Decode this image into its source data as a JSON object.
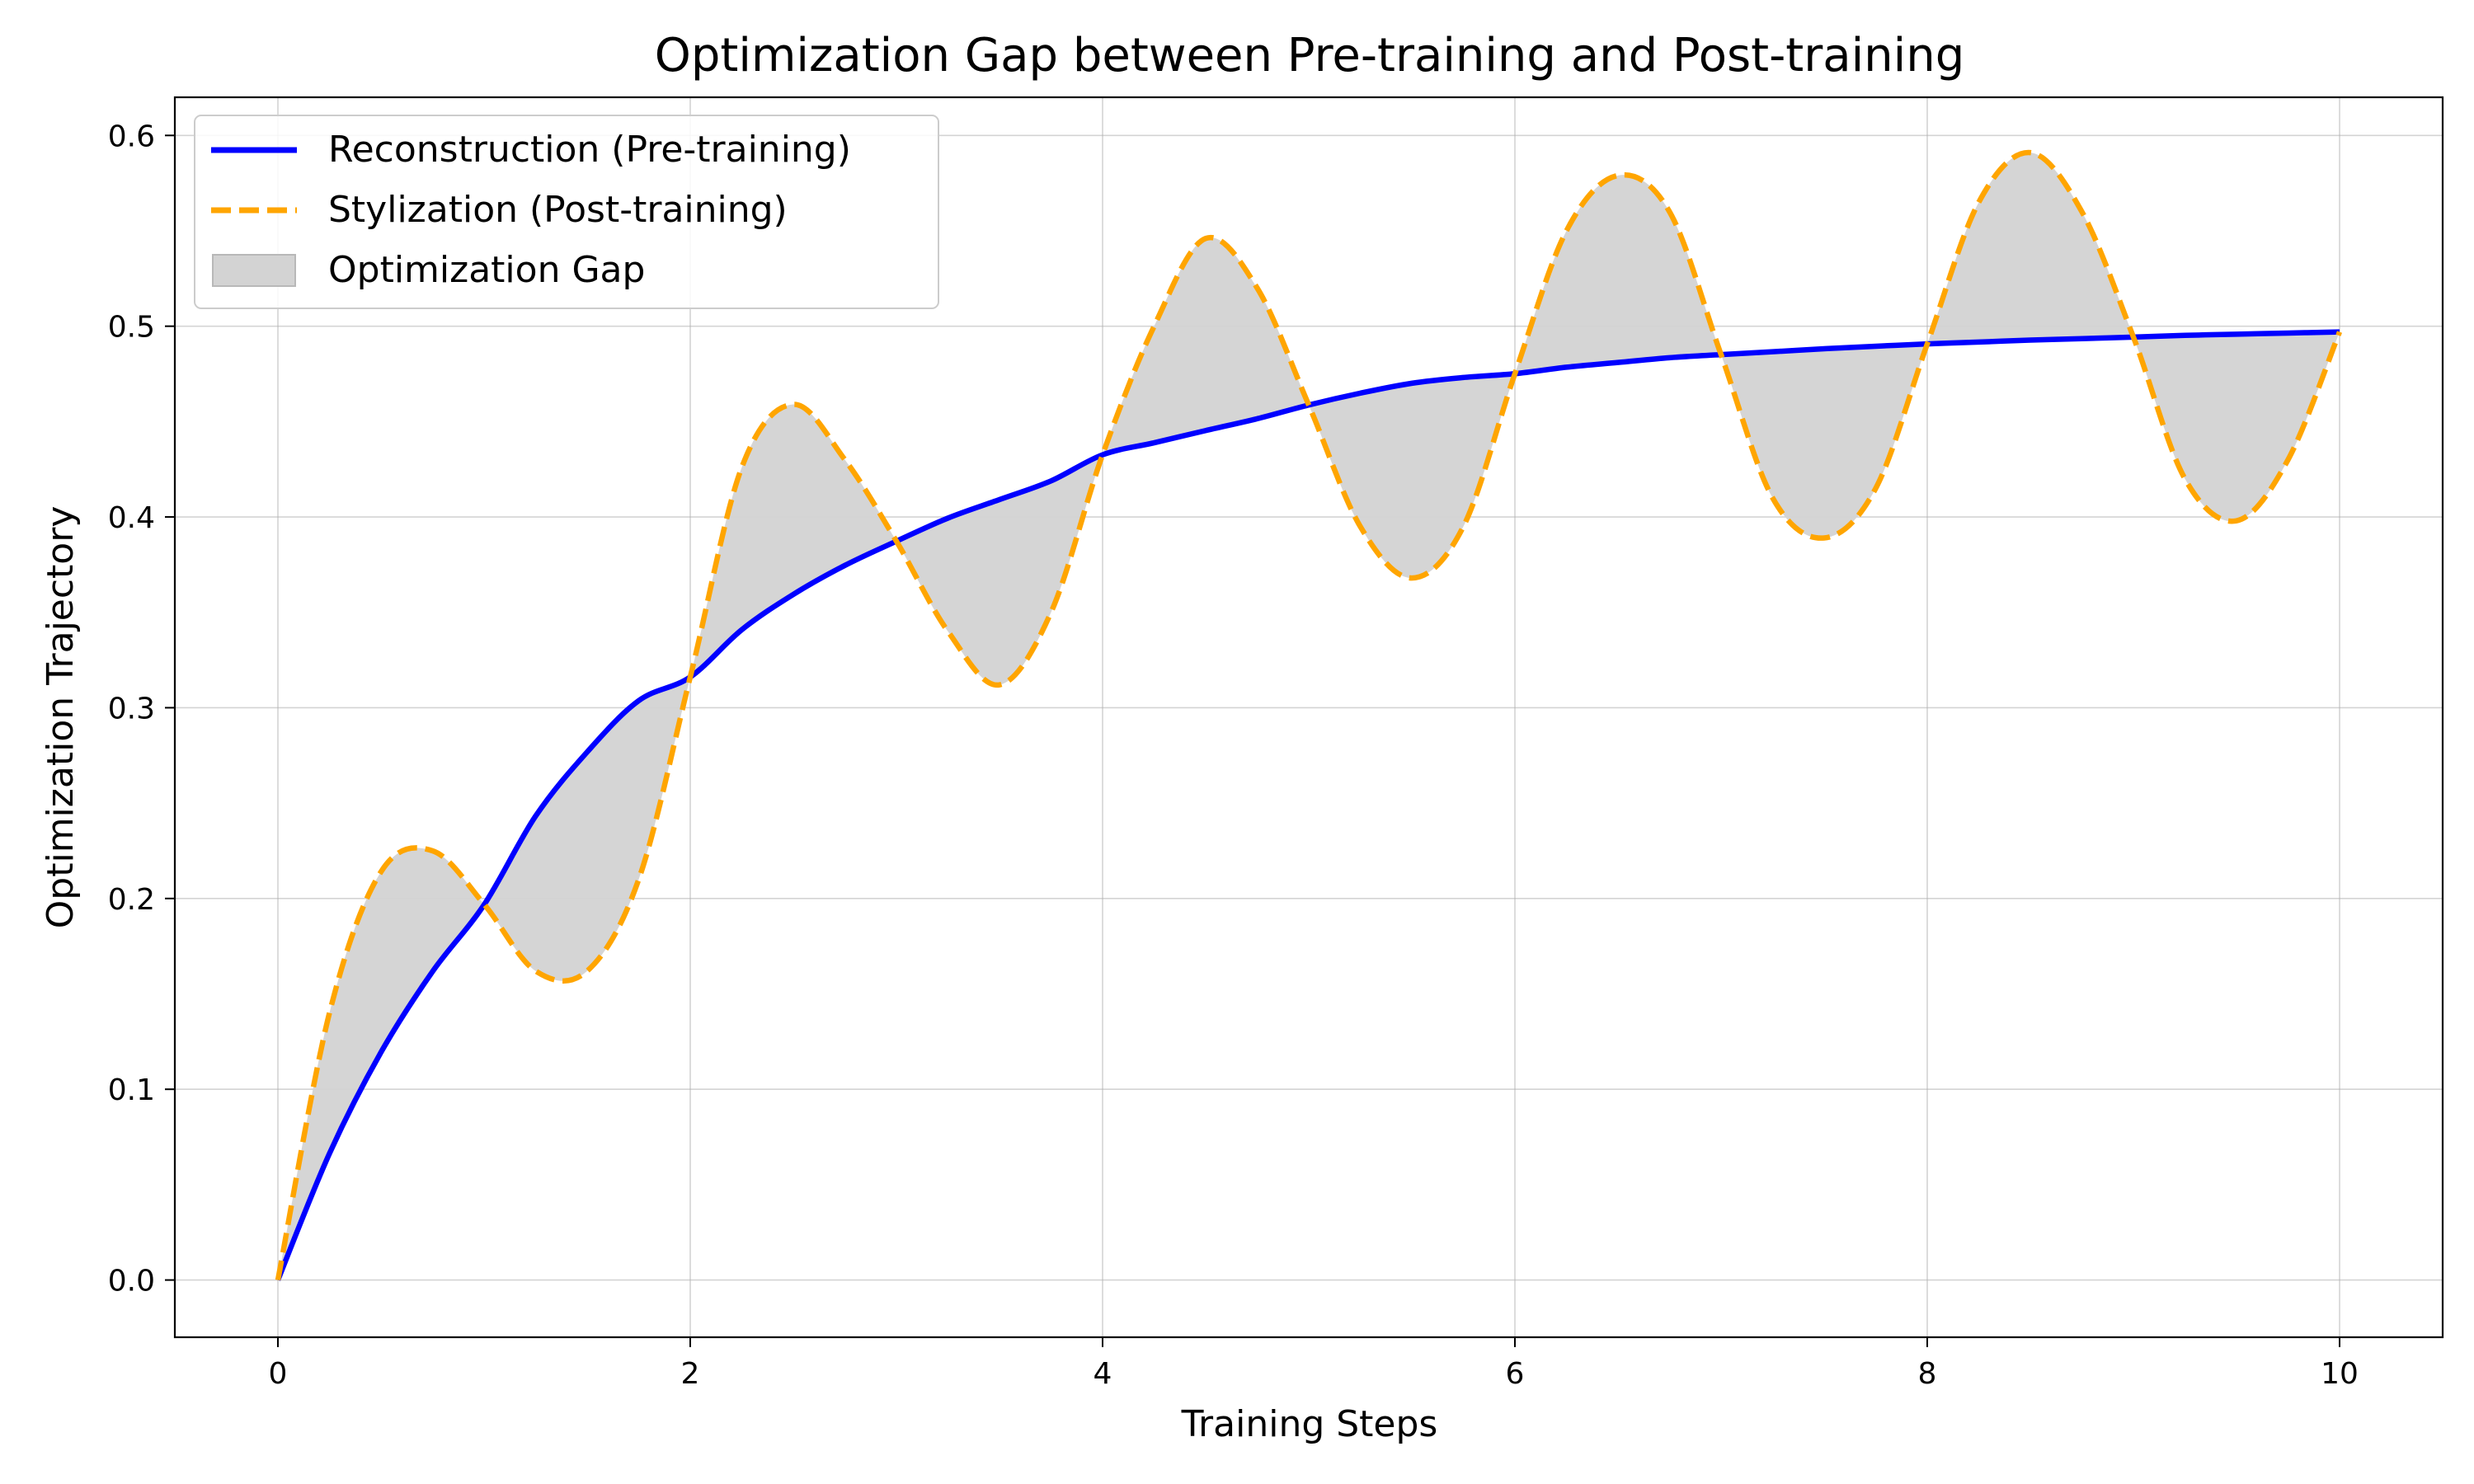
{
  "chart_data": {
    "type": "line",
    "title": "Optimization Gap between Pre-training and Post-training",
    "xlabel": "Training Steps",
    "ylabel": "Optimization Trajectory",
    "xlim": [
      -0.5,
      10.5
    ],
    "ylim": [
      -0.03,
      0.62
    ],
    "xticks": [
      0,
      2,
      4,
      6,
      8,
      10
    ],
    "xtick_labels": [
      "0",
      "2",
      "4",
      "6",
      "8",
      "10"
    ],
    "yticks": [
      0.0,
      0.1,
      0.2,
      0.3,
      0.4,
      0.5,
      0.6
    ],
    "ytick_labels": [
      "0.0",
      "0.1",
      "0.2",
      "0.3",
      "0.4",
      "0.5",
      "0.6"
    ],
    "grid": true,
    "legend_position": "top-left",
    "x": [
      0,
      0.25,
      0.5,
      0.75,
      1,
      1.25,
      1.5,
      1.75,
      2,
      2.25,
      2.5,
      2.75,
      3,
      3.25,
      3.5,
      3.75,
      4,
      4.25,
      4.5,
      4.75,
      5,
      5.25,
      5.5,
      5.75,
      6,
      6.25,
      6.5,
      6.75,
      7,
      7.25,
      7.5,
      7.75,
      8,
      8.25,
      8.5,
      8.75,
      9,
      9.25,
      9.5,
      9.75,
      10
    ],
    "series": [
      {
        "name": "Reconstruction (Pre-training)",
        "style": "solid",
        "color": "#0000ff",
        "values": [
          0.0,
          0.0663,
          0.1194,
          0.1617,
          0.1967,
          0.2432,
          0.2768,
          0.3037,
          0.3161,
          0.3409,
          0.3594,
          0.3746,
          0.3873,
          0.3994,
          0.4091,
          0.4189,
          0.4326,
          0.4389,
          0.4453,
          0.4515,
          0.4587,
          0.4649,
          0.4701,
          0.4731,
          0.4751,
          0.4785,
          0.481,
          0.4835,
          0.4851,
          0.4866,
          0.4882,
          0.4895,
          0.4907,
          0.4917,
          0.4927,
          0.4935,
          0.4943,
          0.4952,
          0.4958,
          0.4964,
          0.497
        ]
      },
      {
        "name": "Stylization (Post-training)",
        "style": "dashed",
        "color": "#ffa500",
        "values": [
          0.0,
          0.14,
          0.214,
          0.225,
          0.197,
          0.162,
          0.162,
          0.21,
          0.3161,
          0.426,
          0.459,
          0.43,
          0.3873,
          0.34,
          0.312,
          0.35,
          0.4326,
          0.5,
          0.546,
          0.52,
          0.4587,
          0.395,
          0.368,
          0.395,
          0.4751,
          0.55,
          0.579,
          0.56,
          0.4851,
          0.41,
          0.389,
          0.415,
          0.4907,
          0.565,
          0.591,
          0.56,
          0.4943,
          0.42,
          0.398,
          0.43,
          0.497
        ]
      }
    ],
    "fill_between": {
      "name": "Optimization Gap",
      "color": "#d3d3d3",
      "between": [
        "Reconstruction (Pre-training)",
        "Stylization (Post-training)"
      ]
    }
  }
}
